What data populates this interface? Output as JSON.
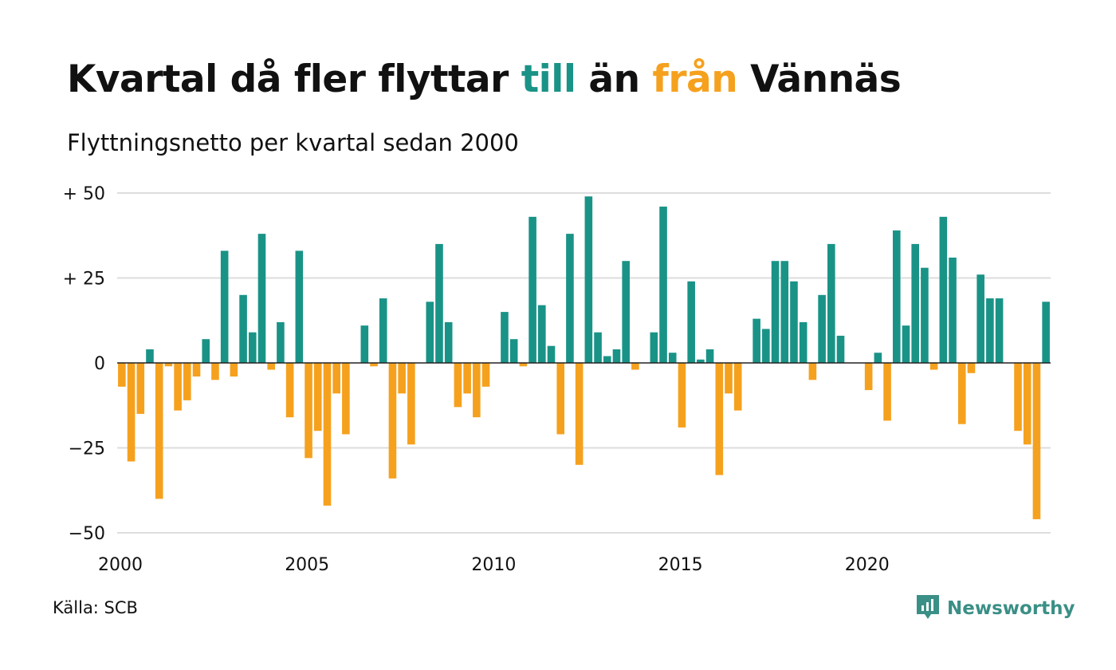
{
  "header": {
    "title_part1": "Kvartal då fler flyttar ",
    "title_till": "till",
    "title_part2": " än ",
    "title_fran": "från",
    "title_part3": " Vännäs",
    "subtitle": "Flyttningsnetto per kvartal sedan 2000"
  },
  "colors": {
    "positive": "#1a9387",
    "negative": "#f5a11e",
    "grid": "#dddddd",
    "baseline": "#222222",
    "brand": "#3a8f86"
  },
  "footer": {
    "source": "Källa: SCB",
    "brand_name": "Newsworthy",
    "brand_icon": "newsworthy-logo-icon"
  },
  "chart_data": {
    "type": "bar",
    "title": "Kvartal då fler flyttar till än från Vännäs",
    "subtitle": "Flyttningsnetto per kvartal sedan 2000",
    "xlabel": "",
    "ylabel": "",
    "start_period": "2000 Q1",
    "x_ticks": [
      "2000",
      "2005",
      "2010",
      "2015",
      "2020"
    ],
    "y_ticks": [
      {
        "value": 50,
        "label": "+ 50"
      },
      {
        "value": 25,
        "label": "+ 25"
      },
      {
        "value": 0,
        "label": "0"
      },
      {
        "value": -25,
        "label": "−25"
      },
      {
        "value": -50,
        "label": "−50"
      }
    ],
    "ylim": [
      -50,
      50
    ],
    "grid": true,
    "values": [
      -7,
      -29,
      -15,
      4,
      -40,
      -1,
      -14,
      -11,
      -4,
      7,
      -5,
      33,
      -4,
      20,
      9,
      38,
      -2,
      12,
      -16,
      33,
      -28,
      -20,
      -42,
      -9,
      -21,
      0,
      11,
      -1,
      19,
      -34,
      -9,
      -24,
      0,
      18,
      35,
      12,
      -13,
      -9,
      -16,
      -7,
      0,
      15,
      7,
      -1,
      43,
      17,
      5,
      -21,
      38,
      -30,
      49,
      9,
      2,
      4,
      30,
      -2,
      0,
      9,
      46,
      3,
      -19,
      24,
      1,
      4,
      -33,
      -9,
      -14,
      0,
      13,
      10,
      30,
      30,
      24,
      12,
      -5,
      20,
      35,
      8,
      0,
      0,
      -8,
      3,
      -17,
      39,
      11,
      35,
      28,
      -2,
      43,
      31,
      -18,
      -3,
      26,
      19,
      19,
      0,
      -20,
      -24,
      -46,
      18
    ]
  }
}
